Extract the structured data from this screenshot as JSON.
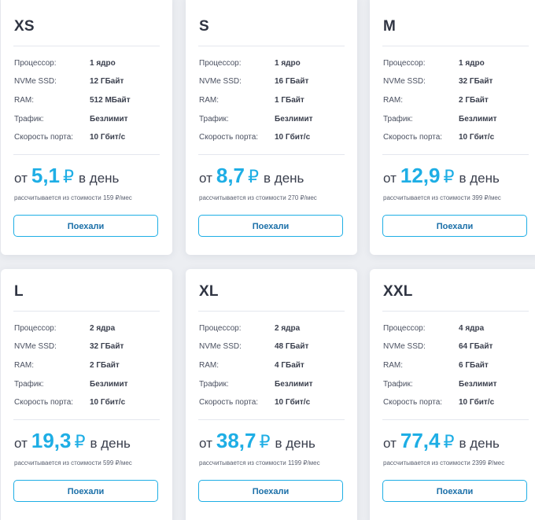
{
  "plans": [
    {
      "name": "XS",
      "specs": [
        {
          "label": "Процессор:",
          "value": "1 ядро"
        },
        {
          "label": "NVMe SSD:",
          "value": "12 ГБайт"
        },
        {
          "label": "RAM:",
          "value": "512 МБайт"
        },
        {
          "label": "Трафик:",
          "value": "Безлимит"
        },
        {
          "label": "Скорость порта:",
          "value": "10 Гбит/с"
        }
      ],
      "price_prefix": "от",
      "price_amount": "5,1",
      "price_currency": "₽",
      "price_suffix": "в день",
      "price_note": "рассчитывается из стоимости 159 ₽/мес",
      "button_label": "Поехали"
    },
    {
      "name": "S",
      "specs": [
        {
          "label": "Процессор:",
          "value": "1 ядро"
        },
        {
          "label": "NVMe SSD:",
          "value": "16 ГБайт"
        },
        {
          "label": "RAM:",
          "value": "1 ГБайт"
        },
        {
          "label": "Трафик:",
          "value": "Безлимит"
        },
        {
          "label": "Скорость порта:",
          "value": "10 Гбит/с"
        }
      ],
      "price_prefix": "от",
      "price_amount": "8,7",
      "price_currency": "₽",
      "price_suffix": "в день",
      "price_note": "рассчитывается из стоимости 270 ₽/мес",
      "button_label": "Поехали"
    },
    {
      "name": "M",
      "specs": [
        {
          "label": "Процессор:",
          "value": "1 ядро"
        },
        {
          "label": "NVMe SSD:",
          "value": "32 ГБайт"
        },
        {
          "label": "RAM:",
          "value": "2 ГБайт"
        },
        {
          "label": "Трафик:",
          "value": "Безлимит"
        },
        {
          "label": "Скорость порта:",
          "value": "10 Гбит/с"
        }
      ],
      "price_prefix": "от",
      "price_amount": "12,9",
      "price_currency": "₽",
      "price_suffix": "в день",
      "price_note": "рассчитывается из стоимости 399 ₽/мес",
      "button_label": "Поехали"
    },
    {
      "name": "L",
      "specs": [
        {
          "label": "Процессор:",
          "value": "2 ядра"
        },
        {
          "label": "NVMe SSD:",
          "value": "32 ГБайт"
        },
        {
          "label": "RAM:",
          "value": "2 ГБайт"
        },
        {
          "label": "Трафик:",
          "value": "Безлимит"
        },
        {
          "label": "Скорость порта:",
          "value": "10 Гбит/с"
        }
      ],
      "price_prefix": "от",
      "price_amount": "19,3",
      "price_currency": "₽",
      "price_suffix": "в день",
      "price_note": "рассчитывается из стоимости 599 ₽/мес",
      "button_label": "Поехали"
    },
    {
      "name": "XL",
      "specs": [
        {
          "label": "Процессор:",
          "value": "2 ядра"
        },
        {
          "label": "NVMe SSD:",
          "value": "48 ГБайт"
        },
        {
          "label": "RAM:",
          "value": "4 ГБайт"
        },
        {
          "label": "Трафик:",
          "value": "Безлимит"
        },
        {
          "label": "Скорость порта:",
          "value": "10 Гбит/с"
        }
      ],
      "price_prefix": "от",
      "price_amount": "38,7",
      "price_currency": "₽",
      "price_suffix": "в день",
      "price_note": "рассчитывается из стоимости 1199 ₽/мес",
      "button_label": "Поехали"
    },
    {
      "name": "XXL",
      "specs": [
        {
          "label": "Процессор:",
          "value": "4 ядра"
        },
        {
          "label": "NVMe SSD:",
          "value": "64 ГБайт"
        },
        {
          "label": "RAM:",
          "value": "6 ГБайт"
        },
        {
          "label": "Трафик:",
          "value": "Безлимит"
        },
        {
          "label": "Скорость порта:",
          "value": "10 Гбит/с"
        }
      ],
      "price_prefix": "от",
      "price_amount": "77,4",
      "price_currency": "₽",
      "price_suffix": "в день",
      "price_note": "рассчитывается из стоимости 2399 ₽/мес",
      "button_label": "Поехали"
    }
  ],
  "colors": {
    "accent": "#1eaee5",
    "text": "#3a3f4d",
    "background": "#eceef2"
  }
}
